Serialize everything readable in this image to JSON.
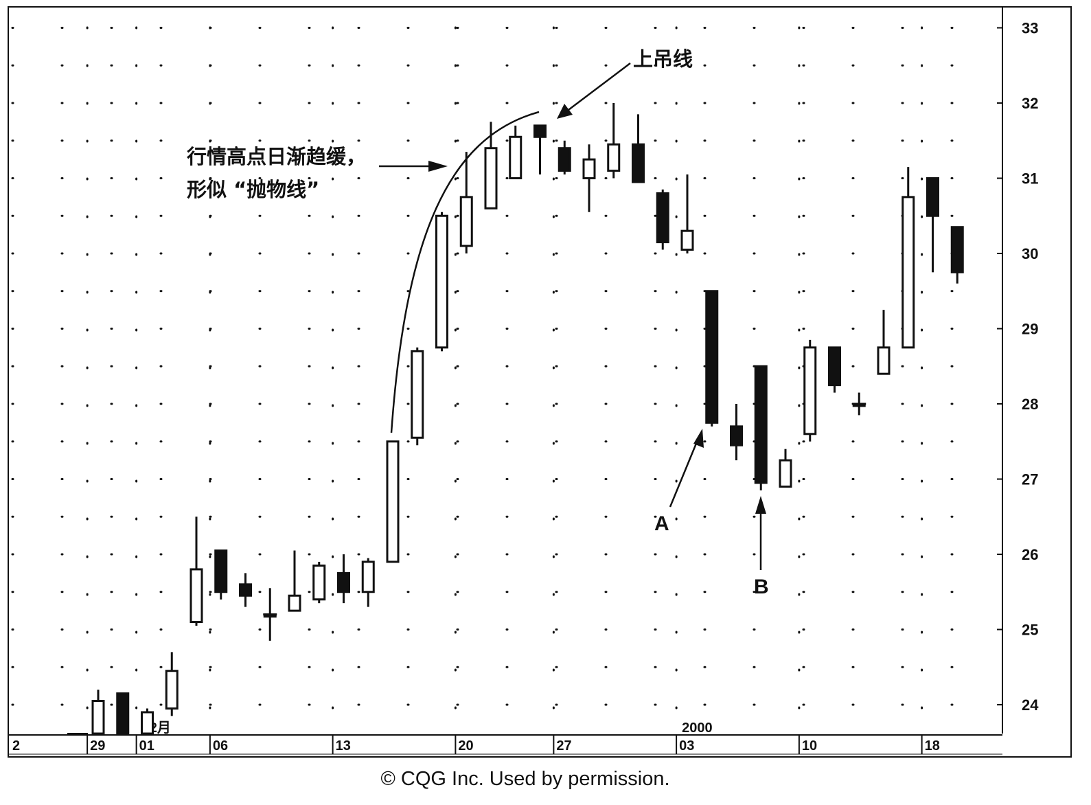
{
  "chart_data": {
    "type": "candlestick",
    "y_ticks": [
      "24",
      "25",
      "26",
      "27",
      "28",
      "29",
      "30",
      "31",
      "32",
      "33"
    ],
    "ylim": [
      23.6,
      33.2
    ],
    "x_ticks": [
      {
        "label": "2",
        "index": -4
      },
      {
        "label": "29",
        "index": 0
      },
      {
        "label": "01",
        "index": 2
      },
      {
        "label": "06",
        "index": 5
      },
      {
        "label": "13",
        "index": 10
      },
      {
        "label": "20",
        "index": 15
      },
      {
        "label": "27",
        "index": 19
      },
      {
        "label": "03",
        "index": 24
      },
      {
        "label": "10",
        "index": 29
      },
      {
        "label": "18",
        "index": 34
      }
    ],
    "period_labels": [
      {
        "label": "12月",
        "index": 2
      },
      {
        "label": "2000",
        "index": 24
      }
    ],
    "candles": [
      {
        "i": 0,
        "open": 23.6,
        "high": 24.2,
        "low": 23.6,
        "close": 24.05
      },
      {
        "i": 1,
        "open": 24.15,
        "high": 24.15,
        "low": 23.6,
        "close": 23.6
      },
      {
        "i": 2,
        "open": 23.6,
        "high": 23.95,
        "low": 23.6,
        "close": 23.9
      },
      {
        "i": 3,
        "open": 23.95,
        "high": 24.7,
        "low": 23.85,
        "close": 24.45
      },
      {
        "i": 4,
        "open": 25.1,
        "high": 26.5,
        "low": 25.05,
        "close": 25.8
      },
      {
        "i": 5,
        "open": 26.05,
        "high": 26.05,
        "low": 25.4,
        "close": 25.5
      },
      {
        "i": 6,
        "open": 25.6,
        "high": 25.75,
        "low": 25.3,
        "close": 25.45
      },
      {
        "i": 7,
        "open": 25.2,
        "high": 25.55,
        "low": 24.85,
        "close": 25.2
      },
      {
        "i": 8,
        "open": 25.25,
        "high": 26.05,
        "low": 25.25,
        "close": 25.45
      },
      {
        "i": 9,
        "open": 25.4,
        "high": 25.9,
        "low": 25.35,
        "close": 25.85
      },
      {
        "i": 10,
        "open": 25.75,
        "high": 26.0,
        "low": 25.35,
        "close": 25.5
      },
      {
        "i": 11,
        "open": 25.5,
        "high": 25.95,
        "low": 25.3,
        "close": 25.9
      },
      {
        "i": 12,
        "open": 25.9,
        "high": 27.5,
        "low": 25.9,
        "close": 27.5
      },
      {
        "i": 13,
        "open": 27.55,
        "high": 28.75,
        "low": 27.45,
        "close": 28.7
      },
      {
        "i": 14,
        "open": 28.75,
        "high": 30.55,
        "low": 28.7,
        "close": 30.5
      },
      {
        "i": 15,
        "open": 30.1,
        "high": 31.35,
        "low": 30.0,
        "close": 30.75
      },
      {
        "i": 16,
        "open": 30.6,
        "high": 31.75,
        "low": 30.6,
        "close": 31.4
      },
      {
        "i": 17,
        "open": 31.0,
        "high": 31.7,
        "low": 31.0,
        "close": 31.55
      },
      {
        "i": 18,
        "open": 31.7,
        "high": 31.7,
        "low": 31.05,
        "close": 31.55
      },
      {
        "i": 19,
        "open": 31.4,
        "high": 31.5,
        "low": 31.05,
        "close": 31.1
      },
      {
        "i": 20,
        "open": 31.0,
        "high": 31.45,
        "low": 30.55,
        "close": 31.25
      },
      {
        "i": 21,
        "open": 31.1,
        "high": 32.0,
        "low": 31.0,
        "close": 31.45
      },
      {
        "i": 22,
        "open": 31.45,
        "high": 31.85,
        "low": 30.95,
        "close": 30.95
      },
      {
        "i": 23,
        "open": 30.8,
        "high": 30.85,
        "low": 30.05,
        "close": 30.15
      },
      {
        "i": 24,
        "open": 30.05,
        "high": 31.05,
        "low": 30.0,
        "close": 30.3
      },
      {
        "i": 25,
        "open": 29.5,
        "high": 29.5,
        "low": 27.7,
        "close": 27.75
      },
      {
        "i": 26,
        "open": 27.7,
        "high": 28.0,
        "low": 27.25,
        "close": 27.45
      },
      {
        "i": 27,
        "open": 28.5,
        "high": 28.5,
        "low": 26.85,
        "close": 26.95
      },
      {
        "i": 28,
        "open": 26.9,
        "high": 27.4,
        "low": 26.9,
        "close": 27.25
      },
      {
        "i": 29,
        "open": 27.6,
        "high": 28.85,
        "low": 27.5,
        "close": 28.75
      },
      {
        "i": 30,
        "open": 28.75,
        "high": 28.75,
        "low": 28.15,
        "close": 28.25
      },
      {
        "i": 31,
        "open": 28.0,
        "high": 28.15,
        "low": 27.85,
        "close": 28.0
      },
      {
        "i": 32,
        "open": 28.4,
        "high": 29.25,
        "low": 28.4,
        "close": 28.75
      },
      {
        "i": 33,
        "open": 28.75,
        "high": 31.15,
        "low": 28.75,
        "close": 30.75
      },
      {
        "i": 34,
        "open": 31.0,
        "high": 31.0,
        "low": 29.75,
        "close": 30.5
      },
      {
        "i": 35,
        "open": 30.35,
        "high": 30.35,
        "low": 29.6,
        "close": 29.75
      }
    ],
    "annotations": [
      {
        "key": "hanging_man",
        "text": "上吊线"
      },
      {
        "key": "parabola_line1",
        "text": "行情高点日渐趋缓，"
      },
      {
        "key": "parabola_line2",
        "text": "形似 “抛物线”"
      },
      {
        "key": "point_a",
        "text": "A"
      },
      {
        "key": "point_b",
        "text": "B"
      }
    ],
    "grid": "dotted"
  },
  "footer": {
    "copyright": "© CQG Inc. Used by permission."
  },
  "colors": {
    "ink": "#111111",
    "background": "#ffffff"
  }
}
